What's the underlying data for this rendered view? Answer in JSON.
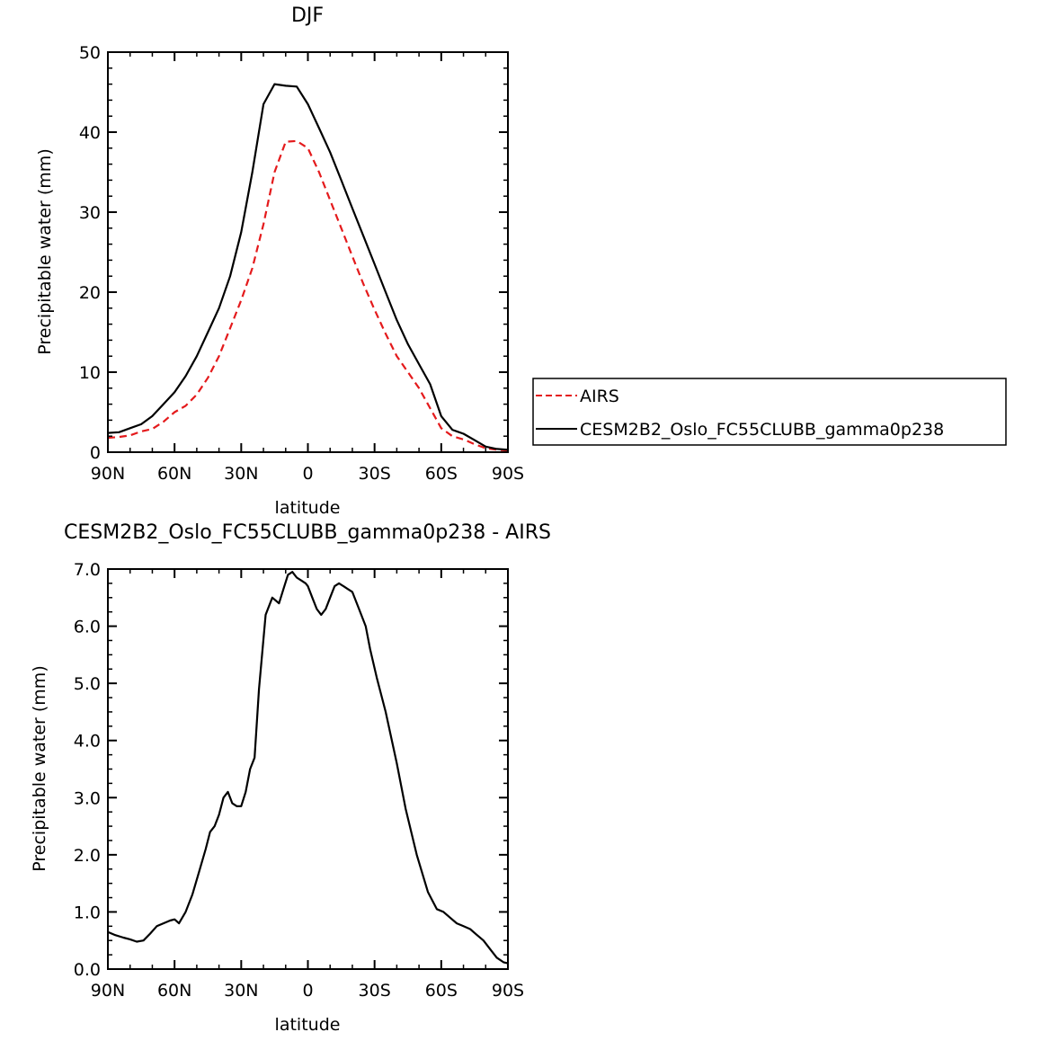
{
  "chart_data": [
    {
      "type": "line",
      "title": "DJF",
      "xlabel": "latitude",
      "ylabel": "Precipitable water (mm)",
      "xlim": [
        90,
        -90
      ],
      "ylim": [
        0,
        50
      ],
      "x_ticks": [
        90,
        60,
        30,
        0,
        -30,
        -60,
        -90
      ],
      "x_tick_labels": [
        "90N",
        "60N",
        "30N",
        "0",
        "30S",
        "60S",
        "90S"
      ],
      "y_ticks": [
        0,
        10,
        20,
        30,
        40,
        50
      ],
      "y_tick_labels": [
        "0",
        "10",
        "20",
        "30",
        "40",
        "50"
      ],
      "grid": false,
      "legend_position": "right",
      "series": [
        {
          "name": "AIRS",
          "color": "#e41a1c",
          "dash": "dashed",
          "x": [
            90,
            85,
            80,
            75,
            70,
            65,
            60,
            55,
            50,
            45,
            40,
            35,
            30,
            25,
            20,
            15,
            10,
            5,
            0,
            -5,
            -10,
            -15,
            -20,
            -25,
            -30,
            -35,
            -40,
            -45,
            -50,
            -55,
            -60,
            -65,
            -70,
            -75,
            -80,
            -85,
            -90
          ],
          "y": [
            1.8,
            1.9,
            2.1,
            2.6,
            2.9,
            3.8,
            5.0,
            5.8,
            7.2,
            9.3,
            12.0,
            15.5,
            19.0,
            23.0,
            28.5,
            35.0,
            38.8,
            38.9,
            38.0,
            35.0,
            31.5,
            28.0,
            24.5,
            21.0,
            17.8,
            14.8,
            12.0,
            10.0,
            8.0,
            5.5,
            3.0,
            2.0,
            1.6,
            1.0,
            0.5,
            0.3,
            0.2
          ]
        },
        {
          "name": "CESM2B2_Oslo_FC55CLUBB_gamma0p238",
          "color": "#000000",
          "dash": "solid",
          "x": [
            90,
            85,
            80,
            75,
            70,
            65,
            60,
            55,
            50,
            45,
            40,
            35,
            30,
            25,
            20,
            15,
            10,
            5,
            0,
            -5,
            -10,
            -15,
            -20,
            -25,
            -30,
            -35,
            -40,
            -45,
            -50,
            -55,
            -60,
            -65,
            -70,
            -75,
            -80,
            -85,
            -90
          ],
          "y": [
            2.4,
            2.5,
            3.0,
            3.5,
            4.5,
            6.0,
            7.5,
            9.5,
            12.0,
            15.0,
            18.0,
            22.0,
            27.5,
            35.0,
            43.5,
            46.0,
            45.8,
            45.7,
            43.5,
            40.5,
            37.5,
            34.0,
            30.5,
            27.0,
            23.5,
            20.0,
            16.5,
            13.5,
            11.0,
            8.5,
            4.5,
            2.8,
            2.3,
            1.5,
            0.7,
            0.4,
            0.3
          ]
        }
      ]
    },
    {
      "type": "line",
      "title": "CESM2B2_Oslo_FC55CLUBB_gamma0p238 - AIRS",
      "xlabel": "latitude",
      "ylabel": "Precipitable water (mm)",
      "xlim": [
        90,
        -90
      ],
      "ylim": [
        0,
        7
      ],
      "x_ticks": [
        90,
        60,
        30,
        0,
        -30,
        -60,
        -90
      ],
      "x_tick_labels": [
        "90N",
        "60N",
        "30N",
        "0",
        "30S",
        "60S",
        "90S"
      ],
      "y_ticks": [
        0,
        1,
        2,
        3,
        4,
        5,
        6,
        7
      ],
      "y_tick_labels": [
        "0.0",
        "1.0",
        "2.0",
        "3.0",
        "4.0",
        "5.0",
        "6.0",
        "7.0"
      ],
      "grid": false,
      "series": [
        {
          "color": "#000000",
          "dash": "solid",
          "x": [
            90,
            87,
            83,
            80,
            77,
            74,
            71,
            68,
            65,
            62,
            60,
            58,
            55,
            52,
            49,
            46,
            44,
            42,
            40,
            38,
            36,
            34,
            32,
            30,
            28,
            26,
            24,
            22,
            19,
            16,
            13,
            11,
            9,
            7,
            5,
            3,
            1,
            0,
            -2,
            -4,
            -6,
            -8,
            -10,
            -12,
            -14,
            -16,
            -18,
            -20,
            -23,
            -26,
            -28,
            -31,
            -35,
            -40,
            -44,
            -49,
            -54,
            -58,
            -61,
            -64,
            -67,
            -70,
            -73,
            -76,
            -79,
            -82,
            -85,
            -88,
            -90
          ],
          "y": [
            0.65,
            0.6,
            0.55,
            0.52,
            0.48,
            0.5,
            0.62,
            0.75,
            0.8,
            0.85,
            0.87,
            0.8,
            1.0,
            1.3,
            1.7,
            2.1,
            2.4,
            2.5,
            2.7,
            3.0,
            3.1,
            2.9,
            2.85,
            2.85,
            3.1,
            3.5,
            3.7,
            4.9,
            6.2,
            6.5,
            6.4,
            6.65,
            6.9,
            6.95,
            6.85,
            6.8,
            6.75,
            6.7,
            6.5,
            6.3,
            6.2,
            6.3,
            6.5,
            6.7,
            6.75,
            6.7,
            6.65,
            6.6,
            6.3,
            6.0,
            5.6,
            5.1,
            4.5,
            3.6,
            2.8,
            2.0,
            1.35,
            1.05,
            1.0,
            0.9,
            0.8,
            0.75,
            0.7,
            0.6,
            0.5,
            0.35,
            0.2,
            0.12,
            0.1
          ]
        }
      ]
    }
  ]
}
